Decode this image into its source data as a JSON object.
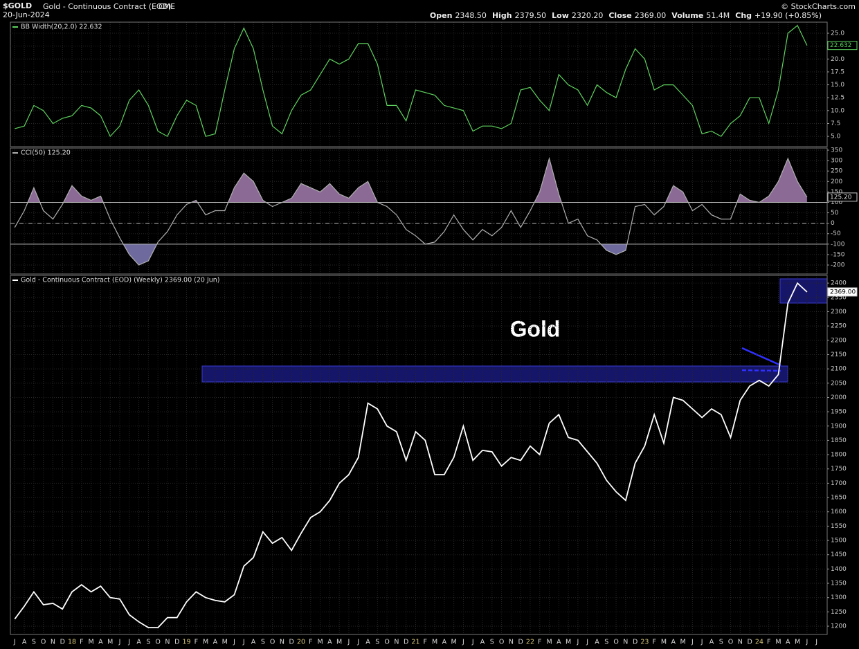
{
  "header": {
    "symbol": "$GOLD",
    "name": "Gold - Continuous Contract (EOD)",
    "exchange": "CME",
    "date": "20-Jun-2024",
    "credit": "© StockCharts.com",
    "quote": [
      [
        "Open",
        "2348.50"
      ],
      [
        "High",
        "2379.50"
      ],
      [
        "Low",
        "2320.20"
      ],
      [
        "Close",
        "2369.00"
      ],
      [
        "Volume",
        "51.4M"
      ],
      [
        "Chg",
        "+19.90 (+0.85%)"
      ]
    ]
  },
  "annotation": "Gold",
  "chart_data": [
    {
      "type": "line",
      "title": "BB Width(20,2.0) 22.632",
      "tag_label": "22.632",
      "color": "#5fd35f",
      "values": [
        6.5,
        7,
        11,
        10,
        7.5,
        8.5,
        9,
        11,
        10.5,
        9,
        5,
        7,
        12,
        14,
        11,
        6,
        5,
        9,
        12,
        11,
        5,
        5.5,
        14,
        22,
        26,
        22,
        14,
        7,
        5.5,
        10,
        13,
        14,
        17,
        20,
        19,
        20,
        23,
        23,
        19,
        11,
        11,
        8,
        14,
        13.5,
        13,
        11,
        10.5,
        10,
        6,
        7,
        7,
        6.5,
        7.5,
        14,
        14.5,
        12,
        10,
        17,
        15,
        14,
        11,
        15,
        13.5,
        12.5,
        18,
        22,
        20,
        14,
        15,
        15,
        13,
        11,
        5.5,
        6,
        5,
        7.5,
        9,
        12.5,
        12.5,
        7.5,
        14,
        25,
        26.5,
        22.632,
        null
      ],
      "ylim": [
        3,
        27.15
      ],
      "yticks": [
        {
          "value": 5,
          "label": "5.0"
        },
        {
          "value": 7.5,
          "label": "7.5"
        },
        {
          "value": 10,
          "label": "10.0"
        },
        {
          "value": 12.5,
          "label": "12.5"
        },
        {
          "value": 15,
          "label": "15.0"
        },
        {
          "value": 17.5,
          "label": "17.5"
        },
        {
          "value": 20,
          "label": "20.0"
        },
        {
          "value": 22.5,
          "label": "22.5"
        },
        {
          "value": 25,
          "label": "25.0"
        }
      ]
    },
    {
      "type": "cci",
      "title": "CCI(50) 125.20",
      "tag_label": "125.20",
      "color": "#b0b0b0",
      "fill_color": "#8c6a96",
      "low_fill_color": "#6e6a9e",
      "values": [
        -20,
        60,
        170,
        60,
        20,
        90,
        180,
        130,
        110,
        130,
        20,
        -70,
        -150,
        -200,
        -180,
        -90,
        -40,
        40,
        90,
        110,
        40,
        60,
        60,
        170,
        240,
        200,
        110,
        80,
        100,
        120,
        190,
        170,
        150,
        190,
        140,
        120,
        170,
        200,
        100,
        80,
        40,
        -30,
        -60,
        -100,
        -90,
        -40,
        40,
        -30,
        -80,
        -30,
        -60,
        -20,
        60,
        -20,
        60,
        150,
        310,
        140,
        0,
        20,
        -60,
        -80,
        -130,
        -150,
        -130,
        80,
        90,
        40,
        80,
        180,
        150,
        60,
        90,
        40,
        20,
        20,
        140,
        110,
        100,
        130,
        200,
        310,
        200,
        125.2,
        null
      ],
      "levels": [
        100,
        0,
        -100
      ],
      "ylim": [
        -243,
        360
      ],
      "yticks": [
        -200,
        -150,
        -100,
        -50,
        0,
        50,
        100,
        150,
        200,
        250,
        300,
        350
      ]
    },
    {
      "type": "line",
      "title": "Gold - Continuous Contract (EOD) (Weekly) 2369.00 (20 Jun)",
      "tag_label": "2369.00",
      "color": "#ffffff",
      "categories": [
        "J",
        "A",
        "S",
        "O",
        "N",
        "D",
        "18",
        "F",
        "M",
        "A",
        "M",
        "J",
        "J",
        "A",
        "S",
        "O",
        "N",
        "D",
        "19",
        "F",
        "M",
        "A",
        "M",
        "J",
        "J",
        "A",
        "S",
        "O",
        "N",
        "D",
        "20",
        "F",
        "M",
        "A",
        "M",
        "J",
        "J",
        "A",
        "S",
        "O",
        "N",
        "D",
        "21",
        "F",
        "M",
        "A",
        "M",
        "J",
        "J",
        "A",
        "S",
        "O",
        "N",
        "D",
        "22",
        "F",
        "M",
        "A",
        "M",
        "J",
        "J",
        "A",
        "S",
        "O",
        "N",
        "D",
        "23",
        "F",
        "M",
        "A",
        "M",
        "J",
        "J",
        "A",
        "S",
        "O",
        "N",
        "D",
        "24",
        "F",
        "M",
        "A",
        "M",
        "J",
        "J"
      ],
      "values": [
        1225,
        1270,
        1320,
        1275,
        1280,
        1260,
        1320,
        1345,
        1320,
        1340,
        1300,
        1295,
        1240,
        1215,
        1195,
        1195,
        1230,
        1230,
        1285,
        1320,
        1300,
        1290,
        1285,
        1310,
        1410,
        1440,
        1530,
        1490,
        1510,
        1465,
        1525,
        1580,
        1600,
        1640,
        1700,
        1730,
        1790,
        1980,
        1960,
        1900,
        1880,
        1780,
        1880,
        1850,
        1730,
        1730,
        1790,
        1900,
        1780,
        1815,
        1810,
        1760,
        1790,
        1780,
        1830,
        1800,
        1910,
        1940,
        1860,
        1850,
        1810,
        1770,
        1710,
        1670,
        1640,
        1770,
        1830,
        1940,
        1840,
        2000,
        1990,
        1960,
        1930,
        1960,
        1940,
        1860,
        1990,
        2040,
        2060,
        2040,
        2080,
        2330,
        2400,
        2369,
        null
      ],
      "ylim": [
        1171,
        2427
      ],
      "yticks": [
        1200,
        1250,
        1300,
        1350,
        1400,
        1450,
        1500,
        1550,
        1600,
        1650,
        1700,
        1750,
        1800,
        1850,
        1900,
        1950,
        2000,
        2050,
        2100,
        2150,
        2200,
        2250,
        2300,
        2350,
        2400
      ]
    }
  ]
}
